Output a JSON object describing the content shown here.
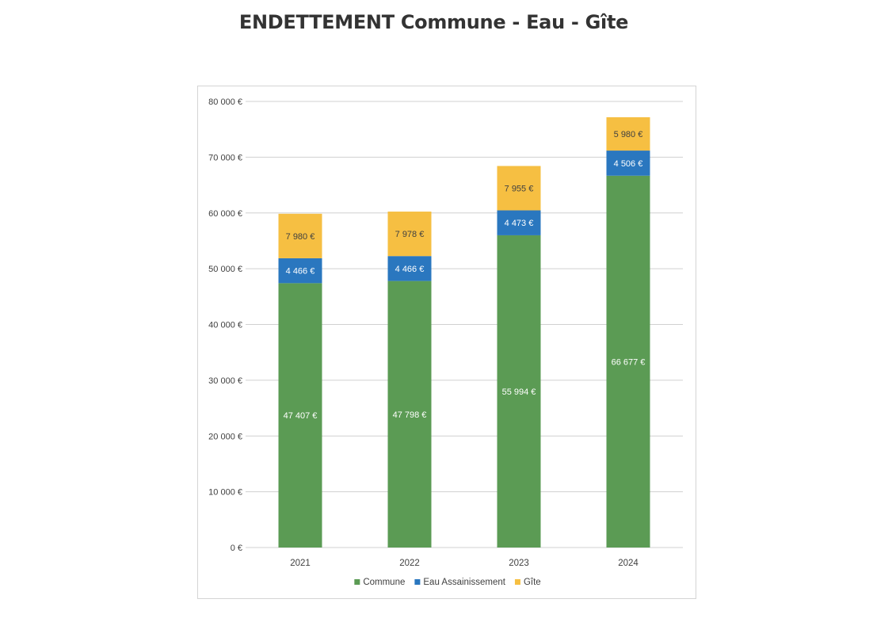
{
  "chart_data": {
    "type": "bar",
    "stacked": true,
    "title": "ENDETTEMENT Commune - Eau - Gîte",
    "xlabel": "",
    "ylabel": "",
    "categories": [
      "2021",
      "2022",
      "2023",
      "2024"
    ],
    "series": [
      {
        "name": "Commune",
        "color": "#5b9b54",
        "values": [
          47407,
          47798,
          55994,
          66677
        ],
        "labels": [
          "47 407 €",
          "47 798 €",
          "55 994 €",
          "66 677 €"
        ],
        "label_color": "#ffffff"
      },
      {
        "name": "Eau Assainissement",
        "color": "#2a77bf",
        "values": [
          4466,
          4466,
          4473,
          4506
        ],
        "labels": [
          "4 466 €",
          "4 466 €",
          "4 473 €",
          "4 506 €"
        ],
        "label_color": "#ffffff"
      },
      {
        "name": "Gîte",
        "color": "#f6bf42",
        "values": [
          7980,
          7978,
          7955,
          5980
        ],
        "labels": [
          "7 980 €",
          "7 978 €",
          "7 955 €",
          "5 980 €"
        ],
        "label_color": "#404040"
      }
    ],
    "ylim": [
      0,
      80000
    ],
    "yticks": [
      {
        "value": 0,
        "label": "0 €"
      },
      {
        "value": 10000,
        "label": "10 000 €"
      },
      {
        "value": 20000,
        "label": "20 000 €"
      },
      {
        "value": 30000,
        "label": "30 000 €"
      },
      {
        "value": 40000,
        "label": "40 000 €"
      },
      {
        "value": 50000,
        "label": "50 000 €"
      },
      {
        "value": 60000,
        "label": "60 000 €"
      },
      {
        "value": 70000,
        "label": "70 000 €"
      },
      {
        "value": 80000,
        "label": "80 000 €"
      }
    ],
    "grid": true,
    "grid_color": "#d0d0d0",
    "legend_position": "bottom"
  }
}
